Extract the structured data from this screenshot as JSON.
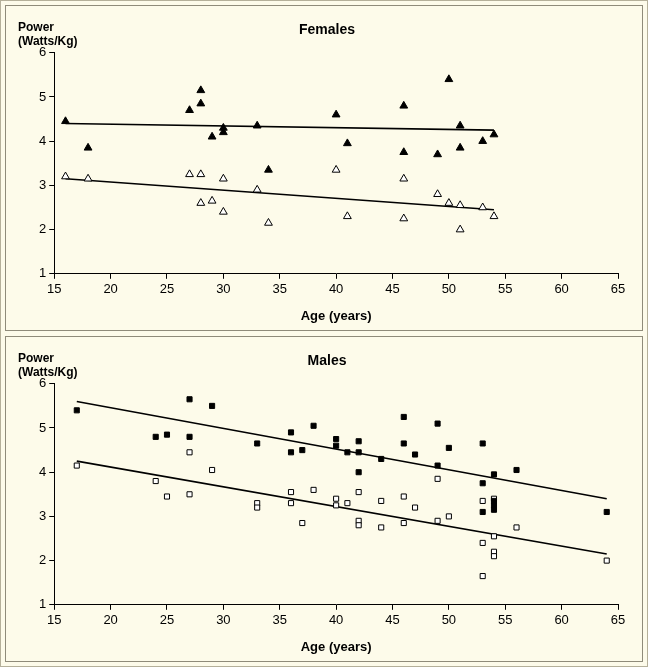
{
  "chart_data": [
    {
      "type": "scatter",
      "title": "Females",
      "xlabel": "Age (years)",
      "ylabel": "Power (Watts/Kg)",
      "xlim": [
        15,
        65
      ],
      "xticks": [
        15,
        20,
        25,
        30,
        35,
        40,
        45,
        50,
        55,
        60,
        65
      ],
      "ylim": [
        1,
        6
      ],
      "yticks": [
        1,
        2,
        3,
        4,
        5,
        6
      ],
      "grid": false,
      "series": [
        {
          "type": "scatter",
          "marker": "filled_triangle",
          "color": "#000000",
          "x": [
            16,
            18,
            27,
            28,
            28,
            29,
            30,
            30,
            33,
            34,
            40,
            41,
            46,
            46,
            49,
            50,
            51,
            51,
            53,
            54
          ],
          "values": [
            4.45,
            3.85,
            4.7,
            4.85,
            5.15,
            4.1,
            4.3,
            4.2,
            4.35,
            3.35,
            4.6,
            3.95,
            4.8,
            3.75,
            3.7,
            5.4,
            4.35,
            3.85,
            4.0,
            4.15
          ]
        },
        {
          "type": "scatter",
          "marker": "open_triangle",
          "color": "#000000",
          "x": [
            16,
            18,
            27,
            28,
            28,
            29,
            30,
            30,
            33,
            34,
            40,
            41,
            46,
            46,
            49,
            50,
            51,
            51,
            53,
            54
          ],
          "values": [
            3.2,
            3.15,
            3.25,
            3.25,
            2.6,
            2.65,
            3.15,
            2.4,
            2.9,
            2.15,
            3.35,
            2.3,
            3.15,
            2.25,
            2.8,
            2.6,
            2.55,
            2.0,
            2.5,
            2.3
          ]
        },
        {
          "type": "line",
          "line_style": "solid",
          "color": "#000000",
          "x": [
            16,
            54
          ],
          "values": [
            4.4,
            4.25
          ]
        },
        {
          "type": "line",
          "line_style": "solid",
          "color": "#000000",
          "x": [
            16,
            54
          ],
          "values": [
            3.15,
            2.45
          ]
        }
      ]
    },
    {
      "type": "scatter",
      "title": "Males",
      "xlabel": "Age (years)",
      "ylabel": "Power (Watts/Kg)",
      "xlim": [
        15,
        65
      ],
      "xticks": [
        15,
        20,
        25,
        30,
        35,
        40,
        45,
        50,
        55,
        60,
        65
      ],
      "ylim": [
        1,
        6
      ],
      "yticks": [
        1,
        2,
        3,
        4,
        5,
        6
      ],
      "grid": false,
      "series": [
        {
          "type": "scatter",
          "marker": "filled_square",
          "color": "#000000",
          "x": [
            17,
            24,
            25,
            27,
            27,
            29,
            33,
            36,
            36,
            37,
            38,
            40,
            40,
            41,
            42,
            42,
            42,
            44,
            46,
            46,
            47,
            49,
            49,
            50,
            53,
            53,
            53,
            54,
            54,
            54,
            54,
            56,
            64
          ],
          "values": [
            5.4,
            4.8,
            4.85,
            5.65,
            4.8,
            5.5,
            4.65,
            4.9,
            4.45,
            4.5,
            5.05,
            4.75,
            4.6,
            4.45,
            4.7,
            4.45,
            4.0,
            4.3,
            5.25,
            4.65,
            4.4,
            5.1,
            4.15,
            4.55,
            4.65,
            3.75,
            3.1,
            3.95,
            3.35,
            3.25,
            3.15,
            4.05,
            3.1
          ]
        },
        {
          "type": "scatter",
          "marker": "open_square",
          "color": "#000000",
          "x": [
            17,
            24,
            25,
            27,
            27,
            29,
            33,
            33,
            36,
            36,
            37,
            38,
            40,
            40,
            41,
            42,
            42,
            42,
            44,
            44,
            46,
            46,
            47,
            49,
            49,
            50,
            53,
            53,
            53,
            54,
            54,
            54,
            54,
            56,
            64
          ],
          "values": [
            4.15,
            3.8,
            3.45,
            4.45,
            3.5,
            4.05,
            3.3,
            3.2,
            3.55,
            3.3,
            2.85,
            3.6,
            3.4,
            3.25,
            3.3,
            3.55,
            2.9,
            2.8,
            3.35,
            2.75,
            3.45,
            2.85,
            3.2,
            3.85,
            2.9,
            3.0,
            3.35,
            2.4,
            1.65,
            3.4,
            2.55,
            2.2,
            2.1,
            2.75,
            2.0
          ]
        },
        {
          "type": "line",
          "line_style": "solid",
          "color": "#000000",
          "x": [
            17,
            64
          ],
          "values": [
            5.6,
            3.4
          ]
        },
        {
          "type": "line",
          "line_style": "solid",
          "color": "#000000",
          "x": [
            17,
            64
          ],
          "values": [
            4.25,
            2.15
          ]
        }
      ]
    }
  ]
}
